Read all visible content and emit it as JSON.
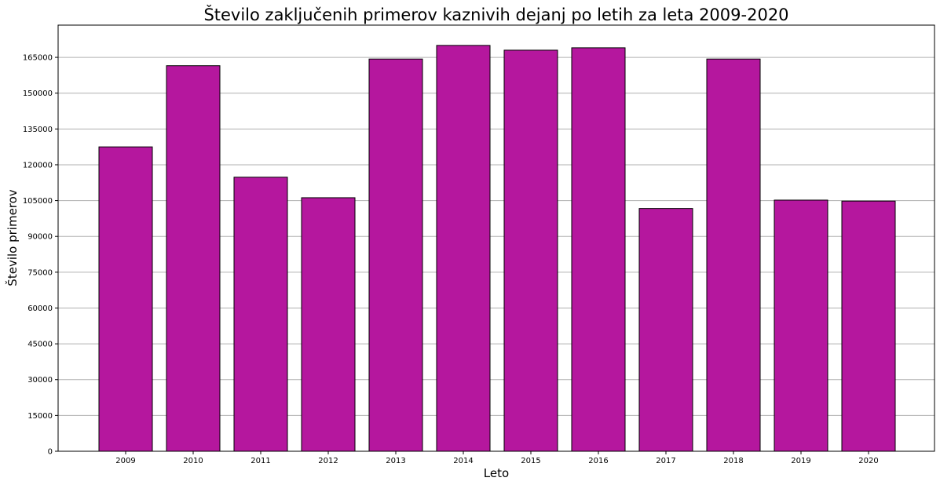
{
  "chart_data": {
    "type": "bar",
    "title": "Število zaključenih primerov kaznivih dejanj po letih za leta 2009-2020",
    "xlabel": "Leto",
    "ylabel": "Število primerov",
    "categories": [
      "2009",
      "2010",
      "2011",
      "2012",
      "2013",
      "2014",
      "2015",
      "2016",
      "2017",
      "2018",
      "2019",
      "2020"
    ],
    "values": [
      127500,
      161500,
      114800,
      106200,
      164300,
      170000,
      168000,
      169000,
      101700,
      164300,
      105200,
      104800
    ],
    "ylim": [
      0,
      178500
    ],
    "yticks": [
      0,
      15000,
      30000,
      45000,
      60000,
      75000,
      90000,
      105000,
      120000,
      135000,
      150000,
      165000
    ],
    "ytick_labels": [
      "0",
      "15000",
      "30000",
      "45000",
      "60000",
      "75000",
      "90000",
      "105000",
      "120000",
      "135000",
      "150000",
      "165000"
    ],
    "grid": "y",
    "colors": {
      "bar": "#b5179e",
      "edge": "#000000",
      "grid": "#b0b0b0"
    }
  }
}
